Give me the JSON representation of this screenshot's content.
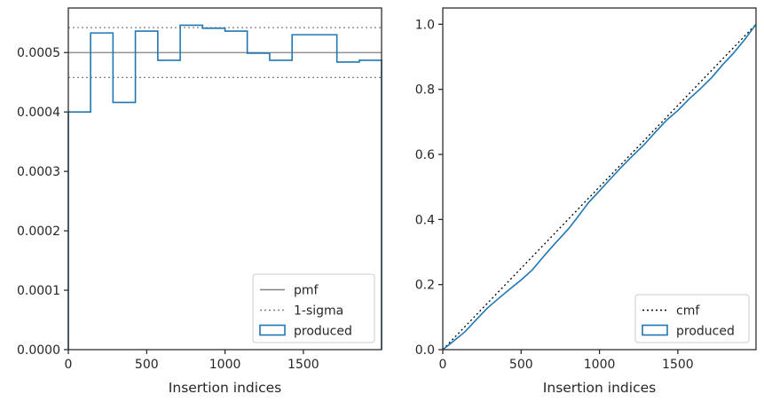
{
  "chart_data": [
    {
      "type": "step",
      "title": "",
      "xlabel": "Insertion indices",
      "ylabel": "",
      "xlim": [
        0,
        1999
      ],
      "ylim": [
        0,
        0.000575
      ],
      "xticks": [
        0,
        500,
        1000,
        1500
      ],
      "xtick_labels": [
        "0",
        "500",
        "1000",
        "1500"
      ],
      "yticks": [
        0,
        0.0001,
        0.0002,
        0.0003,
        0.0004,
        0.0005
      ],
      "ytick_labels": [
        "0.0000",
        "0.0001",
        "0.0002",
        "0.0003",
        "0.0004",
        "0.0005"
      ],
      "grid": false,
      "legend_position": "lower right",
      "lines": [
        {
          "name": "pmf",
          "y": 0.0005,
          "color": "#808080",
          "style": "solid"
        },
        {
          "name": "1-sigma",
          "y": 0.000542,
          "color": "#808080",
          "style": "dotted"
        },
        {
          "name": "1-sigma",
          "y": 0.000458,
          "color": "#808080",
          "style": "dotted"
        }
      ],
      "series": [
        {
          "name": "produced",
          "color": "#1f77b4",
          "bin_edges": [
            0,
            142,
            285,
            428,
            571,
            714,
            857,
            1000,
            1142,
            1285,
            1428,
            1571,
            1714,
            1857,
            1999
          ],
          "values": [
            0.0004,
            0.000533,
            0.000416,
            0.000536,
            0.000487,
            0.000546,
            0.000541,
            0.000536,
            0.000499,
            0.000487,
            0.00053,
            0.00053,
            0.000484,
            0.000487
          ]
        }
      ],
      "legend": [
        "pmf",
        "1-sigma",
        "produced"
      ]
    },
    {
      "type": "line",
      "title": "",
      "xlabel": "Insertion indices",
      "ylabel": "",
      "xlim": [
        0,
        1999
      ],
      "ylim": [
        0,
        1.05
      ],
      "xticks": [
        0,
        500,
        1000,
        1500
      ],
      "xtick_labels": [
        "0",
        "500",
        "1000",
        "1500"
      ],
      "yticks": [
        0,
        0.2,
        0.4,
        0.6,
        0.8,
        1.0
      ],
      "ytick_labels": [
        "0.0",
        "0.2",
        "0.4",
        "0.6",
        "0.8",
        "1.0"
      ],
      "grid": false,
      "legend_position": "lower right",
      "series": [
        {
          "name": "cmf",
          "color": "#000000",
          "style": "dotted",
          "x": [
            0,
            1999
          ],
          "y": [
            0,
            1.0
          ]
        },
        {
          "name": "produced",
          "color": "#1f77b4",
          "style": "solid",
          "x": [
            0,
            60,
            142,
            200,
            285,
            350,
            428,
            500,
            571,
            650,
            714,
            800,
            857,
            930,
            1000,
            1070,
            1142,
            1210,
            1285,
            1350,
            1428,
            1500,
            1571,
            1640,
            1714,
            1785,
            1857,
            1930,
            1999
          ],
          "y": [
            0,
            0.023,
            0.055,
            0.085,
            0.128,
            0.155,
            0.186,
            0.214,
            0.245,
            0.29,
            0.325,
            0.37,
            0.405,
            0.452,
            0.488,
            0.525,
            0.562,
            0.595,
            0.63,
            0.665,
            0.705,
            0.735,
            0.77,
            0.8,
            0.835,
            0.875,
            0.912,
            0.955,
            1.0
          ]
        }
      ],
      "legend": [
        "cmf",
        "produced"
      ]
    }
  ]
}
